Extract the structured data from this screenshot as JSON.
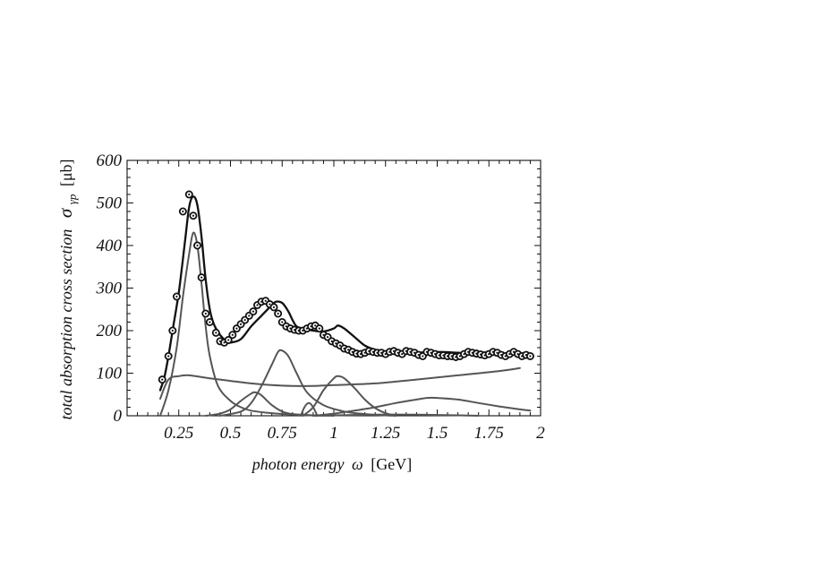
{
  "chart_data": {
    "type": "line",
    "xlabel": {
      "italic": "photon energy",
      "symbol": "ω",
      "unit": "[GeV]"
    },
    "ylabel": {
      "italic": "total absorption cross section",
      "symbol": "σ",
      "subscript": "γp",
      "unit": "[μb]"
    },
    "xlim": [
      0.0,
      2.0
    ],
    "ylim": [
      0,
      600
    ],
    "xticks": [
      0.25,
      0.5,
      0.75,
      1.0,
      1.25,
      1.5,
      1.75,
      2.0
    ],
    "xtick_labels": [
      "0.25",
      "0.5",
      "0.75",
      "1",
      "1.25",
      "1.5",
      "1.75",
      "2"
    ],
    "yticks": [
      0,
      100,
      200,
      300,
      400,
      500,
      600
    ],
    "ytick_labels": [
      "0",
      "100",
      "200",
      "300",
      "400",
      "500",
      "600"
    ],
    "grid": false,
    "series": [
      {
        "role": "total-fit",
        "color": "#111111",
        "x": [
          0.16,
          0.18,
          0.2,
          0.22,
          0.25,
          0.28,
          0.3,
          0.32,
          0.34,
          0.36,
          0.38,
          0.4,
          0.42,
          0.45,
          0.48,
          0.5,
          0.55,
          0.6,
          0.65,
          0.7,
          0.72,
          0.75,
          0.78,
          0.8,
          0.82,
          0.85,
          0.9,
          0.95,
          1.0,
          1.02,
          1.05,
          1.1,
          1.15,
          1.2,
          1.25,
          1.3,
          1.4,
          1.5,
          1.6,
          1.7,
          1.8,
          1.9,
          1.95
        ],
        "y": [
          60,
          90,
          140,
          200,
          290,
          410,
          490,
          515,
          495,
          420,
          320,
          250,
          215,
          190,
          175,
          172,
          180,
          210,
          235,
          260,
          268,
          265,
          245,
          225,
          210,
          205,
          200,
          198,
          205,
          212,
          205,
          185,
          165,
          155,
          148,
          145,
          148,
          150,
          148,
          145,
          143,
          145,
          143
        ]
      },
      {
        "role": "component-delta",
        "color": "#555555",
        "x": [
          0.16,
          0.2,
          0.24,
          0.27,
          0.3,
          0.32,
          0.34,
          0.36,
          0.38,
          0.4,
          0.44,
          0.5,
          0.55,
          0.6,
          0.7,
          0.8,
          0.9
        ],
        "y": [
          0,
          60,
          160,
          280,
          380,
          430,
          400,
          310,
          210,
          140,
          70,
          35,
          20,
          12,
          6,
          3,
          1
        ]
      },
      {
        "role": "component-background",
        "color": "#555555",
        "x": [
          0.16,
          0.2,
          0.25,
          0.3,
          0.4,
          0.5,
          0.6,
          0.7,
          0.8,
          0.9,
          1.0,
          1.2,
          1.4,
          1.6,
          1.8,
          1.9
        ],
        "y": [
          40,
          85,
          93,
          95,
          88,
          82,
          76,
          72,
          70,
          70,
          72,
          76,
          85,
          95,
          105,
          112
        ]
      },
      {
        "role": "component-resonance-1",
        "color": "#555555",
        "x": [
          0.38,
          0.45,
          0.5,
          0.55,
          0.6,
          0.62,
          0.65,
          0.7,
          0.75,
          0.8,
          0.9,
          1.0
        ],
        "y": [
          0,
          5,
          15,
          35,
          52,
          55,
          48,
          25,
          10,
          4,
          1,
          0
        ]
      },
      {
        "role": "component-resonance-2",
        "color": "#555555",
        "x": [
          0.45,
          0.55,
          0.6,
          0.65,
          0.7,
          0.73,
          0.75,
          0.78,
          0.82,
          0.87,
          0.95,
          1.05,
          1.15,
          1.25,
          1.3
        ],
        "y": [
          0,
          10,
          30,
          70,
          120,
          150,
          153,
          140,
          100,
          55,
          25,
          10,
          4,
          1,
          0
        ]
      },
      {
        "role": "component-resonance-3",
        "color": "#555555",
        "x": [
          0.84,
          0.86,
          0.88,
          0.9,
          0.92
        ],
        "y": [
          0,
          22,
          30,
          20,
          0
        ]
      },
      {
        "role": "component-resonance-4",
        "color": "#555555",
        "x": [
          0.85,
          0.9,
          0.95,
          1.0,
          1.02,
          1.05,
          1.1,
          1.15,
          1.2,
          1.25,
          1.3
        ],
        "y": [
          0,
          20,
          60,
          88,
          93,
          88,
          65,
          38,
          18,
          6,
          0
        ]
      },
      {
        "role": "component-resonance-5",
        "color": "#555555",
        "x": [
          0.9,
          1.0,
          1.1,
          1.2,
          1.3,
          1.4,
          1.45,
          1.5,
          1.6,
          1.7,
          1.8,
          1.9,
          1.95
        ],
        "y": [
          0,
          5,
          12,
          20,
          30,
          38,
          42,
          42,
          38,
          30,
          22,
          15,
          12
        ]
      },
      {
        "role": "component-resonance-6",
        "color": "#555555",
        "x": [
          0.9,
          1.1,
          1.3,
          1.5,
          1.7
        ],
        "y": [
          0,
          2,
          3,
          2,
          0
        ]
      }
    ],
    "data_points": {
      "marker": "circle-dot",
      "x": [
        0.17,
        0.2,
        0.22,
        0.24,
        0.27,
        0.3,
        0.32,
        0.34,
        0.36,
        0.38,
        0.4,
        0.43,
        0.45,
        0.47,
        0.49,
        0.51,
        0.53,
        0.55,
        0.57,
        0.59,
        0.61,
        0.63,
        0.65,
        0.67,
        0.69,
        0.71,
        0.73,
        0.75,
        0.77,
        0.79,
        0.81,
        0.83,
        0.85,
        0.87,
        0.89,
        0.91,
        0.93,
        0.95,
        0.97,
        0.99,
        1.01,
        1.03,
        1.05,
        1.07,
        1.09,
        1.11,
        1.13,
        1.15,
        1.17,
        1.19,
        1.21,
        1.23,
        1.25,
        1.27,
        1.29,
        1.31,
        1.33,
        1.35,
        1.37,
        1.39,
        1.41,
        1.43,
        1.45,
        1.47,
        1.49,
        1.51,
        1.53,
        1.55,
        1.57,
        1.59,
        1.61,
        1.63,
        1.65,
        1.67,
        1.69,
        1.71,
        1.73,
        1.75,
        1.77,
        1.79,
        1.81,
        1.83,
        1.85,
        1.87,
        1.89,
        1.91,
        1.93,
        1.95
      ],
      "y": [
        85,
        140,
        200,
        280,
        480,
        520,
        470,
        400,
        325,
        240,
        220,
        195,
        175,
        172,
        178,
        190,
        205,
        215,
        225,
        235,
        245,
        260,
        268,
        270,
        262,
        255,
        240,
        220,
        210,
        205,
        202,
        200,
        200,
        205,
        210,
        212,
        205,
        190,
        185,
        175,
        170,
        165,
        158,
        155,
        150,
        146,
        145,
        148,
        152,
        150,
        148,
        148,
        145,
        150,
        152,
        148,
        145,
        152,
        150,
        148,
        143,
        140,
        150,
        148,
        145,
        142,
        142,
        140,
        140,
        138,
        140,
        145,
        150,
        148,
        146,
        144,
        142,
        145,
        150,
        148,
        143,
        140,
        145,
        150,
        145,
        140,
        143,
        140
      ]
    }
  }
}
